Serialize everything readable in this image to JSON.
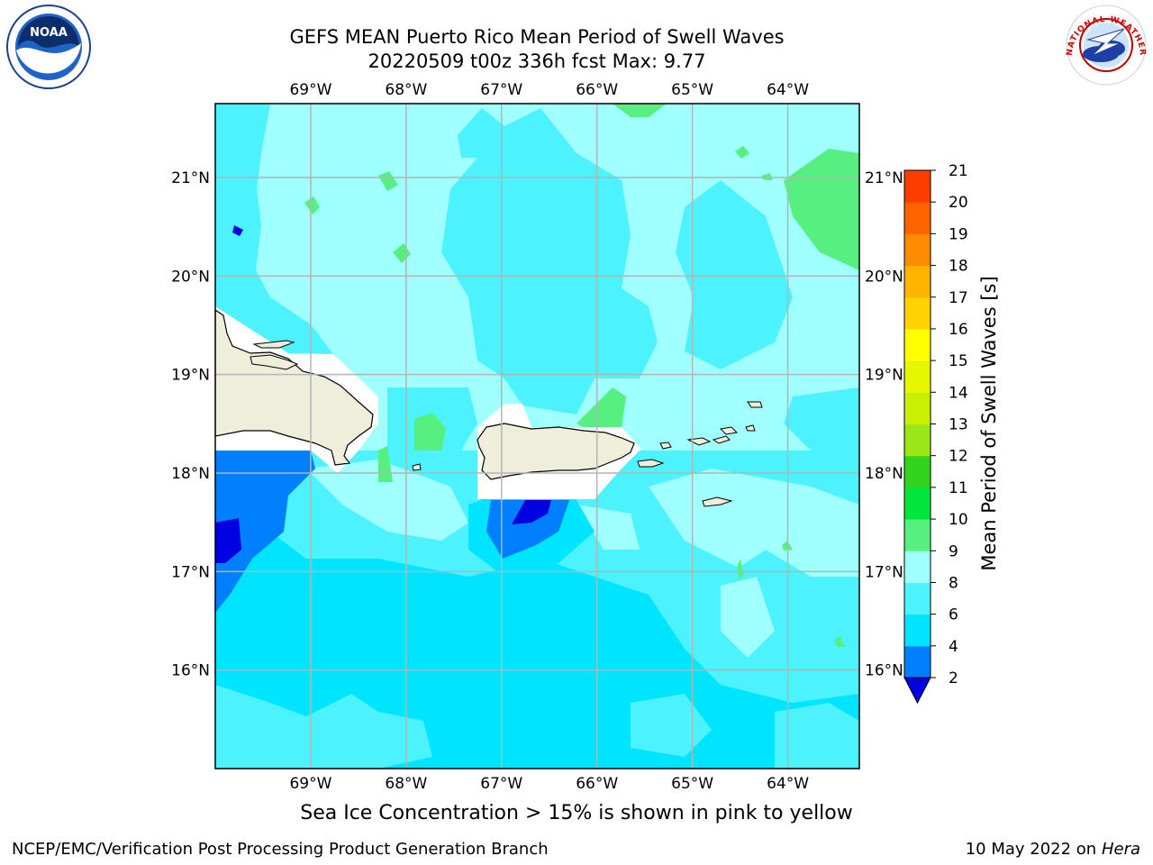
{
  "title": {
    "line1": "GEFS MEAN Puerto Rico Mean Period of Swell Waves",
    "line2": "20220509 t00z 336h fcst   Max: 9.77"
  },
  "map": {
    "lon_labels": [
      "69°W",
      "68°W",
      "67°W",
      "66°W",
      "65°W",
      "64°W"
    ],
    "lat_labels": [
      "21°N",
      "20°N",
      "19°N",
      "18°N",
      "17°N",
      "16°N"
    ],
    "lon_range": [
      -70.0,
      -63.25
    ],
    "lat_range": [
      15.0,
      21.75
    ]
  },
  "colorbar": {
    "label": "Mean Period of Swell Waves [s]",
    "ticks": [
      "2",
      "4",
      "6",
      "8",
      "9",
      "10",
      "11",
      "12",
      "13",
      "14",
      "15",
      "16",
      "17",
      "18",
      "19",
      "20",
      "21"
    ],
    "colors": [
      "#0000e0",
      "#0080ff",
      "#00e5ff",
      "#4df2ff",
      "#a0ffff",
      "#55f080",
      "#00e63c",
      "#32d21e",
      "#9be619",
      "#c8f000",
      "#e6f500",
      "#ffff00",
      "#ffd200",
      "#ffb400",
      "#ff8c00",
      "#ff6400",
      "#ff3c00",
      "#ff0000"
    ]
  },
  "note": "Sea Ice Concentration > 15% is shown in pink to yellow",
  "footer": {
    "left": "NCEP/EMC/Verification Post Processing Product Generation Branch",
    "date": "10 May 2022 on",
    "machine": "Hera"
  },
  "logos": {
    "noaa_text": "NOAA",
    "nws_text": "NATIONAL WEATHER SERVICE"
  }
}
